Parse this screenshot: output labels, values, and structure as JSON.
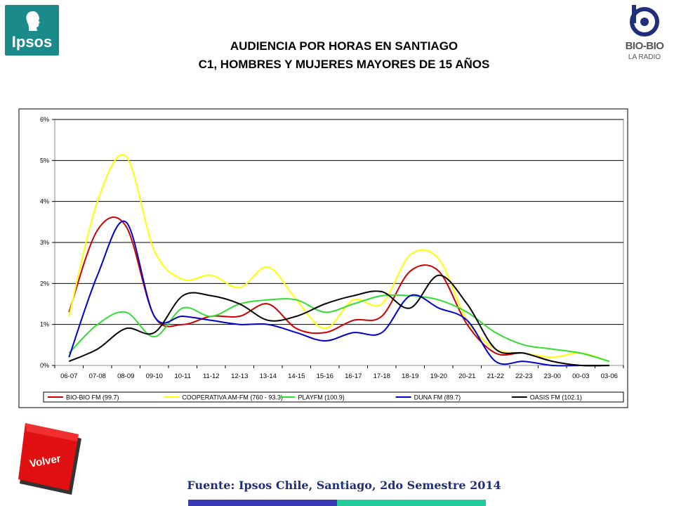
{
  "logos": {
    "left_text": "Ipsos",
    "right_text": "BIO-BIO",
    "right_sub": "LA RADIO"
  },
  "header": {
    "title_line1": "AUDIENCIA POR HORAS EN SANTIAGO",
    "title_line2": "C1, HOMBRES Y MUJERES MAYORES DE 15 AÑOS"
  },
  "footer": {
    "source": "Fuente: Ipsos Chile, Santiago, 2do Semestre 2014",
    "volver_label": "Volver"
  },
  "chart_data": {
    "type": "line",
    "title": "",
    "xlabel": "",
    "ylabel": "",
    "ylim": [
      0,
      6
    ],
    "y_tick_labels": [
      "0%",
      "1%",
      "2%",
      "3%",
      "4%",
      "5%",
      "6%"
    ],
    "grid": "horizontal",
    "legend_placement": "bottom",
    "categories": [
      "06-07",
      "07-08",
      "08-09",
      "09-10",
      "10-11",
      "11-12",
      "12-13",
      "13-14",
      "14-15",
      "15-16",
      "16-17",
      "17-18",
      "18-19",
      "19-20",
      "20-21",
      "21-22",
      "22-23",
      "23-00",
      "00-03",
      "03-06"
    ],
    "series": [
      {
        "name": "BIO-BIO FM (99.7)",
        "color": "#cc0000",
        "values": [
          1.3,
          3.3,
          3.4,
          1.2,
          1.0,
          1.2,
          1.2,
          1.5,
          0.9,
          0.8,
          1.1,
          1.2,
          2.3,
          2.3,
          1.0,
          0.3,
          0.3,
          0.1,
          0.0,
          0.0
        ]
      },
      {
        "name": "COOPERATIVA AM-FM (760 - 93.3)",
        "color": "#ffff00",
        "values": [
          1.2,
          4.0,
          5.1,
          2.8,
          2.1,
          2.2,
          1.9,
          2.4,
          1.6,
          0.9,
          1.6,
          1.5,
          2.7,
          2.6,
          1.1,
          0.4,
          0.3,
          0.2,
          0.3,
          0.1
        ]
      },
      {
        "name": "PLAYFM (100.9)",
        "color": "#33dd33",
        "values": [
          0.3,
          1.0,
          1.3,
          0.7,
          1.4,
          1.2,
          1.5,
          1.6,
          1.6,
          1.3,
          1.5,
          1.7,
          1.7,
          1.6,
          1.3,
          0.8,
          0.5,
          0.4,
          0.3,
          0.1
        ]
      },
      {
        "name": "DUNA FM (89.7)",
        "color": "#0000cc",
        "values": [
          0.2,
          2.2,
          3.5,
          1.2,
          1.2,
          1.1,
          1.0,
          1.0,
          0.8,
          0.6,
          0.8,
          0.8,
          1.7,
          1.4,
          1.1,
          0.1,
          0.1,
          0.0,
          0.0,
          0.0
        ]
      },
      {
        "name": "OASIS FM (102.1)",
        "color": "#000000",
        "values": [
          0.1,
          0.4,
          0.9,
          0.8,
          1.7,
          1.7,
          1.5,
          1.1,
          1.2,
          1.5,
          1.7,
          1.8,
          1.4,
          2.2,
          1.5,
          0.4,
          0.3,
          0.1,
          0.0,
          0.0
        ]
      }
    ]
  }
}
